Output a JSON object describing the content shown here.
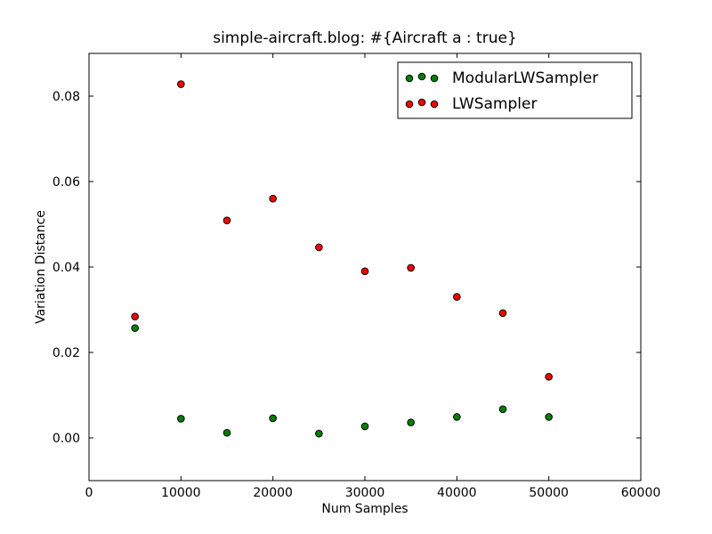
{
  "chart_data": {
    "type": "scatter",
    "title": "simple-aircraft.blog: #{Aircraft a : true}",
    "xlabel": "Num Samples",
    "ylabel": "Variation Distance",
    "xlim": [
      0,
      60000
    ],
    "ylim": [
      -0.01,
      0.09
    ],
    "xticks": [
      0,
      10000,
      20000,
      30000,
      40000,
      50000,
      60000
    ],
    "xtick_labels": [
      "0",
      "10000",
      "20000",
      "30000",
      "40000",
      "50000",
      "60000"
    ],
    "yticks": [
      0.0,
      0.02,
      0.04,
      0.06,
      0.08
    ],
    "ytick_labels": [
      "0.00",
      "0.02",
      "0.04",
      "0.06",
      "0.08"
    ],
    "grid": false,
    "legend_position": "top-right",
    "x": [
      5000,
      10000,
      15000,
      20000,
      25000,
      30000,
      35000,
      40000,
      45000,
      50000
    ],
    "series": [
      {
        "name": "ModularLWSampler",
        "color": "#008000",
        "values": [
          0.0257,
          0.0045,
          0.0012,
          0.0046,
          0.001,
          0.0027,
          0.0036,
          0.0049,
          0.0067,
          0.0049
        ]
      },
      {
        "name": "LWSampler",
        "color": "#ff0000",
        "values": [
          0.0284,
          0.0828,
          0.0509,
          0.056,
          0.0446,
          0.039,
          0.0398,
          0.033,
          0.0292,
          0.0143
        ]
      }
    ]
  }
}
